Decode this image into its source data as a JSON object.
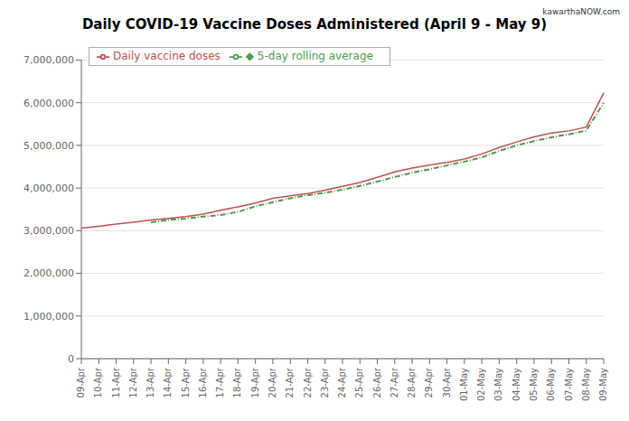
{
  "chart_data": {
    "type": "line",
    "title": "Daily COVID-19 Vaccine Doses Administered (April 9 - May 9)",
    "annotations": [
      "kawarthaNOW.com"
    ],
    "categories": [
      "09-Apr",
      "10-Apr",
      "11-Apr",
      "12-Apr",
      "13-Apr",
      "14-Apr",
      "15-Apr",
      "16-Apr",
      "17-Apr",
      "18-Apr",
      "19-Apr",
      "20-Apr",
      "21-Apr",
      "22-Apr",
      "23-Apr",
      "24-Apr",
      "25-Apr",
      "26-Apr",
      "27-Apr",
      "28-Apr",
      "29-Apr",
      "30-Apr",
      "01-May",
      "02-May",
      "03-May",
      "04-May",
      "05-May",
      "06-May",
      "07-May",
      "08-May",
      "09-May"
    ],
    "series": [
      {
        "name": "Daily vaccine doses",
        "color": "#c0504d",
        "line_style": "solid",
        "values": [
          3060000,
          3105000,
          3155000,
          3200000,
          3250000,
          3290000,
          3330000,
          3390000,
          3480000,
          3560000,
          3650000,
          3760000,
          3820000,
          3870000,
          3950000,
          4040000,
          4130000,
          4250000,
          4380000,
          4470000,
          4540000,
          4600000,
          4680000,
          4800000,
          4950000,
          5080000,
          5200000,
          5290000,
          5340000,
          5430000,
          6230000
        ]
      },
      {
        "name": "◆ 5-day rolling average",
        "color": "#4f9a4f",
        "line_style": "dashdot",
        "values": [
          null,
          null,
          null,
          null,
          3200000,
          3250000,
          3285000,
          3330000,
          3370000,
          3440000,
          3570000,
          3670000,
          3760000,
          3830000,
          3890000,
          3960000,
          4050000,
          4150000,
          4260000,
          4360000,
          4440000,
          4530000,
          4620000,
          4720000,
          4870000,
          5000000,
          5100000,
          5190000,
          5260000,
          5350000,
          6000000
        ]
      }
    ],
    "ylim": [
      0,
      7000000
    ],
    "yticks": [
      0,
      {
        "value": 1000000,
        "label": "1,000,000"
      },
      {
        "value": 2000000,
        "label": "2,000,000"
      },
      {
        "value": 3000000,
        "label": "3,000,000"
      },
      {
        "value": 4000000,
        "label": "4,000,000"
      },
      {
        "value": 5000000,
        "label": "5,000,000"
      },
      {
        "value": 6000000,
        "label": "6,000,000"
      },
      {
        "value": 7000000,
        "label": "7,000,000"
      }
    ],
    "grid": true,
    "legend": "upper left"
  }
}
